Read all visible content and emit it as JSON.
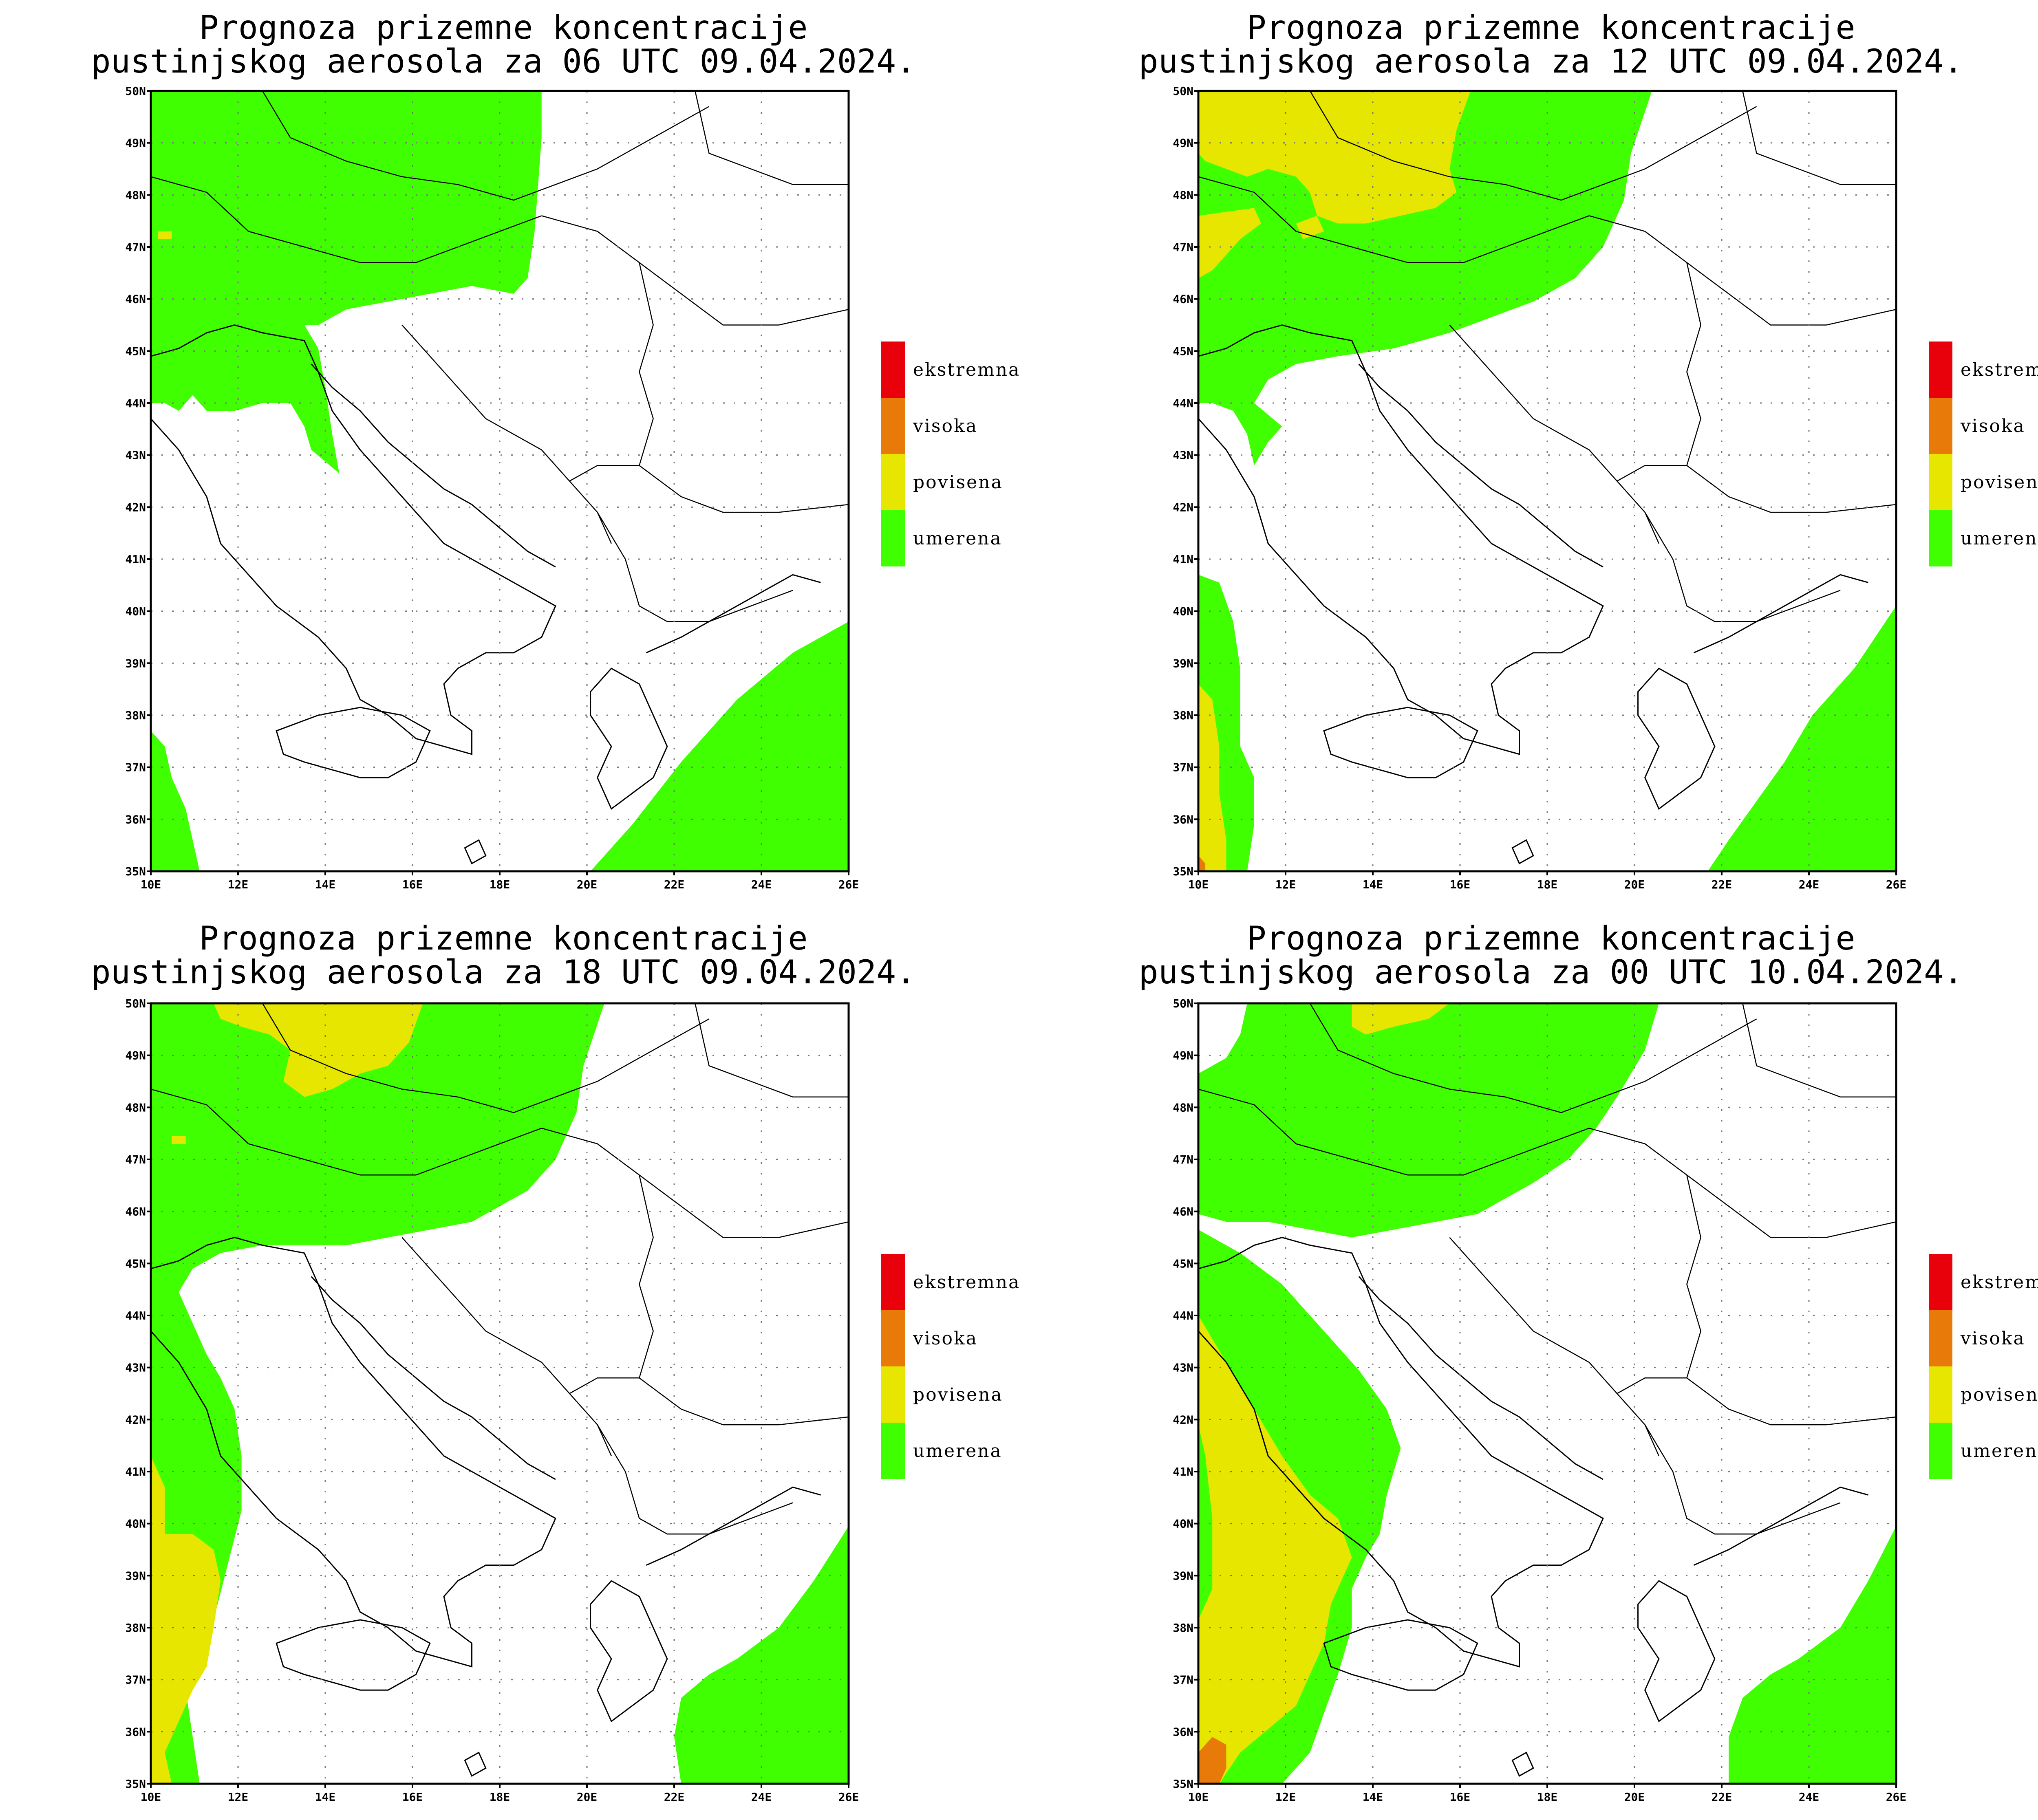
{
  "panels": [
    {
      "title_line1": "Prognoza prizemne koncentracije",
      "title_line2": "pustinjskog aerosola za 06 UTC 09.04.2024."
    },
    {
      "title_line1": "Prognoza prizemne koncentracije",
      "title_line2": "pustinjskog aerosola za 12 UTC 09.04.2024."
    },
    {
      "title_line1": "Prognoza prizemne koncentracije",
      "title_line2": "pustinjskog aerosola za 18 UTC 09.04.2024."
    },
    {
      "title_line1": "Prognoza prizemne koncentracije",
      "title_line2": "pustinjskog aerosola za 00 UTC 10.04.2024."
    }
  ],
  "axes": {
    "lat_labels": [
      "50N",
      "49N",
      "48N",
      "47N",
      "46N",
      "45N",
      "44N",
      "43N",
      "42N",
      "41N",
      "40N",
      "39N",
      "38N",
      "37N",
      "36N",
      "35N"
    ],
    "lon_labels": [
      "10E",
      "12E",
      "14E",
      "16E",
      "18E",
      "20E",
      "22E",
      "24E",
      "26E"
    ]
  },
  "legend": [
    {
      "label": "ekstremna",
      "color": "#e8000b"
    },
    {
      "label": "visoka",
      "color": "#e87a0a"
    },
    {
      "label": "povisena",
      "color": "#e6e600"
    },
    {
      "label": "umerena",
      "color": "#40ff00"
    }
  ],
  "colors": {
    "umerena": "#40ff00",
    "povisena": "#e6e600",
    "visoka": "#e87a0a"
  }
}
